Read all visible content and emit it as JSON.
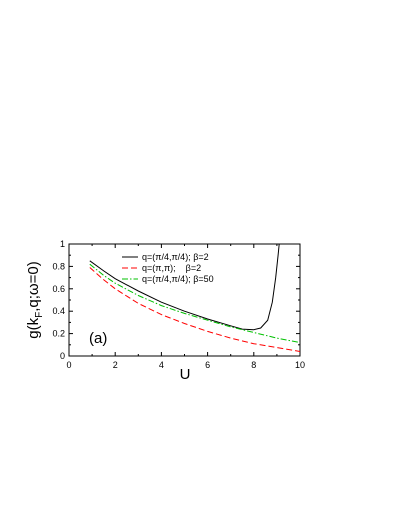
{
  "chart_data": {
    "type": "line",
    "panel_label": "(a)",
    "xlabel": "U",
    "ylabel": "g(k",
    "ylabel_sub": "F",
    "ylabel_rest": ",q;ω=0)",
    "xlim": [
      0,
      10
    ],
    "ylim": [
      0,
      1
    ],
    "xticks": [
      0,
      2,
      4,
      6,
      8,
      10
    ],
    "yticks": [
      0,
      0.2,
      0.4,
      0.6,
      0.8,
      1
    ],
    "grid": false,
    "legend_position": "top-right",
    "series": [
      {
        "name": "q=(π/4,π/4); β=2",
        "color": "#000000",
        "dash": "solid",
        "x": [
          0.9,
          1.5,
          2,
          3,
          4,
          5,
          6,
          7,
          7.5,
          8,
          8.3,
          8.6,
          8.8,
          8.95,
          9.05,
          9.1
        ],
        "y": [
          0.85,
          0.76,
          0.69,
          0.58,
          0.48,
          0.4,
          0.33,
          0.27,
          0.24,
          0.235,
          0.25,
          0.32,
          0.48,
          0.7,
          0.9,
          1.0
        ]
      },
      {
        "name": "q=(π,π);    β=2",
        "color": "#ff0000",
        "dash": "dashed",
        "x": [
          0.9,
          1.5,
          2,
          3,
          4,
          5,
          6,
          7,
          8,
          9,
          10
        ],
        "y": [
          0.79,
          0.68,
          0.6,
          0.47,
          0.37,
          0.29,
          0.22,
          0.16,
          0.11,
          0.075,
          0.04
        ]
      },
      {
        "name": "q=(π/4,π/4); β=50",
        "color": "#00c000",
        "dash": "dashdot",
        "x": [
          0.9,
          1.5,
          2,
          3,
          4,
          5,
          6,
          7,
          8,
          9,
          10
        ],
        "y": [
          0.82,
          0.72,
          0.65,
          0.54,
          0.45,
          0.38,
          0.32,
          0.26,
          0.21,
          0.16,
          0.12
        ]
      }
    ]
  }
}
